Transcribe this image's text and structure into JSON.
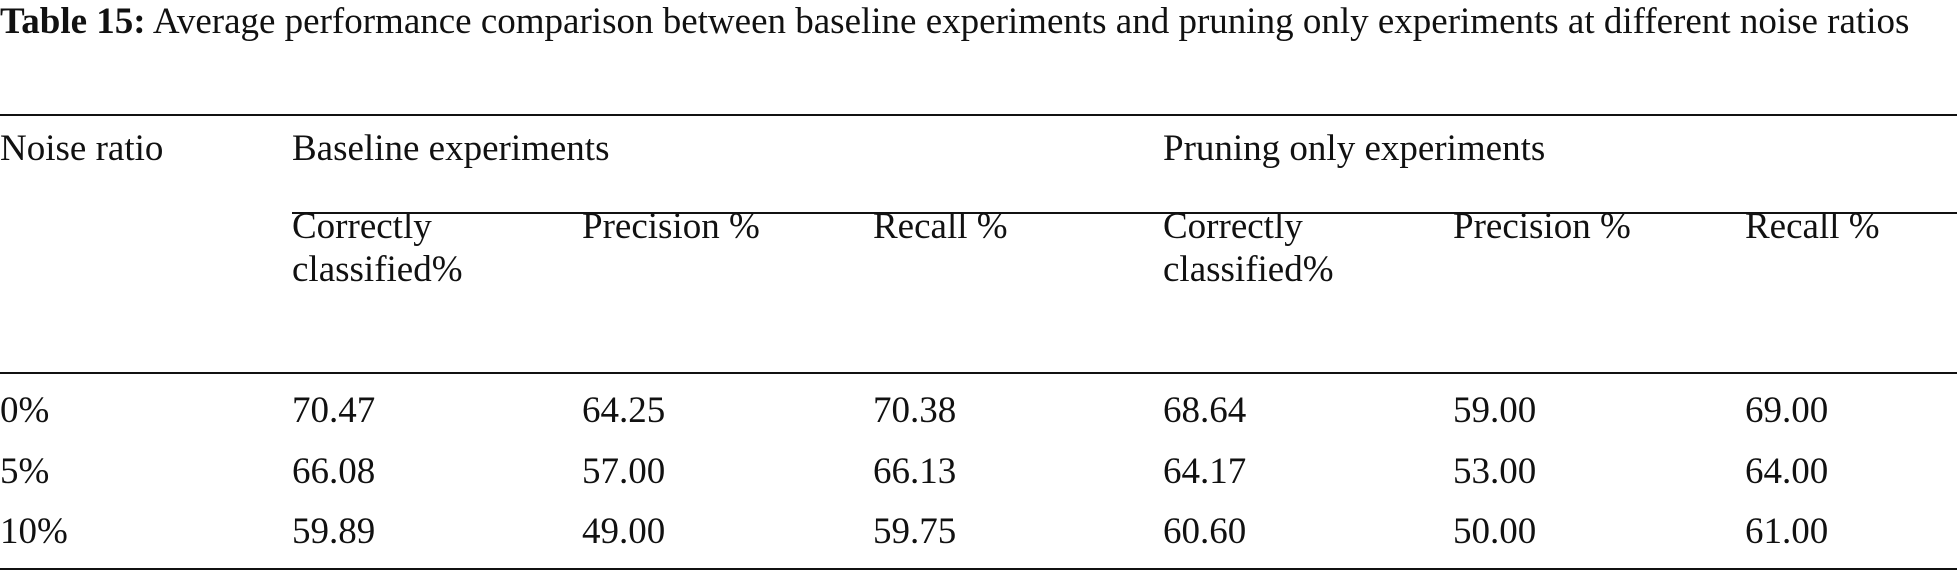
{
  "caption": {
    "label": "Table 15:",
    "text": "Average performance comparison between baseline experiments and pruning only experiments at different noise ratios"
  },
  "table": {
    "header": {
      "row_label": "Noise ratio",
      "groups": [
        "Baseline experiments",
        "Pruning only experiments"
      ],
      "columns": [
        "Correctly classified%",
        "Precision %",
        "Recall %",
        "Correctly classified%",
        "Precision %",
        "Recall %"
      ]
    },
    "rows": [
      [
        "0%",
        "70.47",
        "64.25",
        "70.38",
        "68.64",
        "59.00",
        "69.00"
      ],
      [
        "5%",
        "66.08",
        "57.00",
        "66.13",
        "64.17",
        "53.00",
        "64.00"
      ],
      [
        "10%",
        "59.89",
        "49.00",
        "59.75",
        "60.60",
        "50.00",
        "61.00"
      ]
    ]
  }
}
